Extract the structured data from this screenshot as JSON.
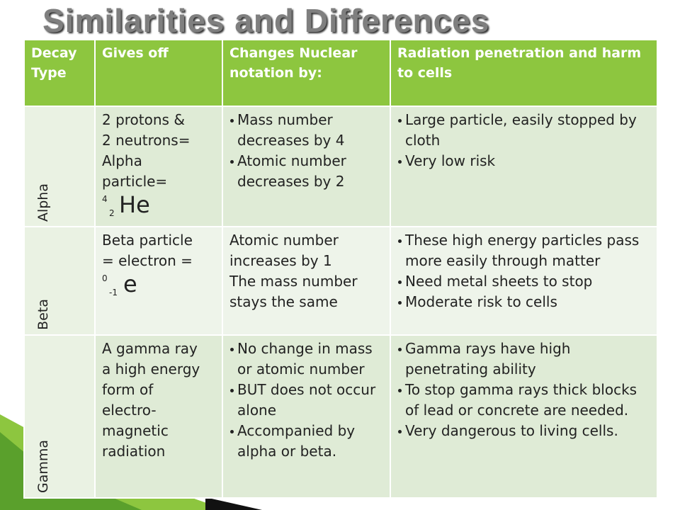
{
  "title": "Similarities and Differences",
  "table": {
    "header": [
      "Decay Type",
      "Gives off",
      "Changes Nuclear notation by:",
      "Radiation penetration and harm to cells"
    ],
    "rows": [
      {
        "type": "Alpha",
        "gives_off": [
          "2 protons &",
          "2 neutrons=",
          "Alpha",
          "particle="
        ],
        "symbol": {
          "mass": "4",
          "atomic": "2",
          "element": "He"
        },
        "changes": {
          "bullets": [
            "Mass number decreases by 4",
            "Atomic number decreases by 2"
          ]
        },
        "penetration": {
          "bullets": [
            "Large particle, easily stopped by cloth",
            "Very low risk"
          ]
        }
      },
      {
        "type": "Beta",
        "gives_off": [
          "Beta particle",
          "= electron ="
        ],
        "symbol": {
          "mass": "0",
          "atomic": "-1",
          "element": "e"
        },
        "changes": {
          "lines": [
            "Atomic number increases by 1",
            "The mass number stays the same"
          ]
        },
        "penetration": {
          "bullets": [
            "These high energy particles pass more easily through matter",
            "Need metal sheets to stop",
            "Moderate risk to cells"
          ]
        }
      },
      {
        "type": "Gamma",
        "gives_off": [
          "A gamma ray",
          "a high energy",
          "form of",
          "electro-",
          "magnetic",
          "radiation"
        ],
        "changes": {
          "bullets": [
            "No change in mass or atomic number",
            "BUT does not occur alone",
            "Accompanied by alpha or beta."
          ]
        },
        "penetration": {
          "bullets": [
            "Gamma rays have high penetrating ability",
            "To stop gamma rays thick blocks of lead or concrete are needed.",
            "Very dangerous to living cells."
          ]
        }
      }
    ]
  }
}
